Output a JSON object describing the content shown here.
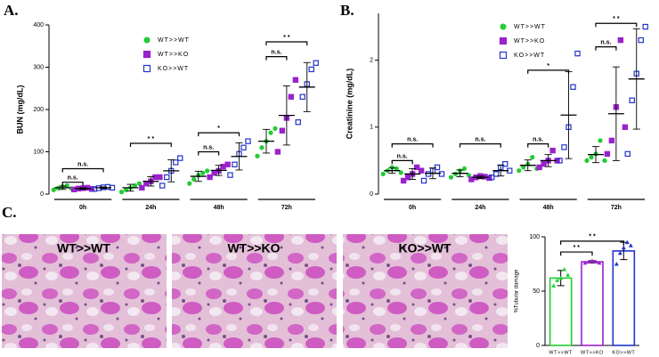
{
  "panels": [
    "A.",
    "B.",
    "C."
  ],
  "images": [
    "WT>>WT",
    "WT>>KO",
    "KO>>WT"
  ],
  "chart_data": [
    {
      "type": "dot",
      "y_label": "BUN (mg/dL)",
      "categories": [
        "0h",
        "24h",
        "48h",
        "72h"
      ],
      "ylim": [
        0,
        400
      ],
      "yticks": [
        0,
        100,
        200,
        300,
        400
      ],
      "series": [
        {
          "name": "WT>>WT",
          "color": "#22cc33",
          "marker": "circle",
          "values": [
            15,
            15,
            42,
            125
          ],
          "errors": [
            4,
            8,
            12,
            28
          ],
          "points": [
            [
              10,
              14,
              18,
              20,
              13
            ],
            [
              5,
              10,
              15,
              20,
              25
            ],
            [
              25,
              35,
              45,
              50,
              55
            ],
            [
              90,
              110,
              125,
              145,
              155
            ]
          ]
        },
        {
          "name": "WT>>KO",
          "color": "#9922cc",
          "marker": "square",
          "values": [
            13,
            30,
            56,
            186
          ],
          "errors": [
            2,
            11,
            12,
            70
          ],
          "points": [
            [
              11,
              13,
              14,
              15,
              12
            ],
            [
              15,
              25,
              30,
              40,
              40
            ],
            [
              40,
              50,
              55,
              65,
              70
            ],
            [
              100,
              150,
              180,
              230,
              270
            ]
          ]
        },
        {
          "name": "KO>>WT",
          "color": "#2233cc",
          "marker": "open-square",
          "values": [
            15,
            55,
            89,
            253
          ],
          "errors": [
            2,
            26,
            32,
            58
          ],
          "points": [
            [
              12,
              14,
              16,
              17,
              15
            ],
            [
              20,
              40,
              55,
              75,
              85
            ],
            [
              45,
              70,
              95,
              110,
              125
            ],
            [
              170,
              230,
              260,
              295,
              310
            ]
          ]
        }
      ],
      "annotations": [
        {
          "text": "n.s.",
          "category": 0,
          "from": 0,
          "to": 1,
          "y": 28
        },
        {
          "text": "n.s.",
          "category": 0,
          "from": 0,
          "to": 2,
          "y": 60
        },
        {
          "text": "* *",
          "category": 1,
          "from": 0,
          "to": 2,
          "y": 120
        },
        {
          "text": "n.s.",
          "category": 2,
          "from": 0,
          "to": 1,
          "y": 100
        },
        {
          "text": "*",
          "category": 2,
          "from": 0,
          "to": 2,
          "y": 145
        },
        {
          "text": "n.s.",
          "category": 3,
          "from": 0,
          "to": 1,
          "y": 325
        },
        {
          "text": "* *",
          "category": 3,
          "from": 0,
          "to": 2,
          "y": 360
        }
      ]
    },
    {
      "type": "dot",
      "y_label": "Creatinine (mg/dL)",
      "categories": [
        "0h",
        "24h",
        "48h",
        "72h"
      ],
      "ylim": [
        0,
        2.7
      ],
      "yticks": [
        0,
        1,
        2
      ],
      "series": [
        {
          "name": "WT>>WT",
          "color": "#22cc33",
          "marker": "circle",
          "values": [
            0.35,
            0.31,
            0.43,
            0.59
          ],
          "errors": [
            0.04,
            0.05,
            0.08,
            0.12
          ],
          "points": [
            [
              0.3,
              0.35,
              0.4,
              0.38,
              0.32
            ],
            [
              0.25,
              0.3,
              0.35,
              0.38,
              0.28
            ],
            [
              0.35,
              0.4,
              0.45,
              0.55,
              0.38
            ],
            [
              0.5,
              0.55,
              0.6,
              0.8,
              0.5
            ]
          ]
        },
        {
          "name": "WT>>KO",
          "color": "#9922cc",
          "marker": "square",
          "values": [
            0.3,
            0.25,
            0.5,
            1.2
          ],
          "errors": [
            0.08,
            0.02,
            0.09,
            0.7
          ],
          "points": [
            [
              0.2,
              0.25,
              0.3,
              0.4,
              0.35
            ],
            [
              0.22,
              0.25,
              0.27,
              0.26,
              0.24
            ],
            [
              0.4,
              0.45,
              0.5,
              0.65,
              0.5
            ],
            [
              0.6,
              0.8,
              1.3,
              2.3,
              1.0
            ]
          ]
        },
        {
          "name": "KO>>WT",
          "color": "#2233cc",
          "marker": "open-square",
          "values": [
            0.31,
            0.35,
            1.18,
            1.72
          ],
          "errors": [
            0.08,
            0.08,
            0.65,
            0.75
          ],
          "points": [
            [
              0.2,
              0.3,
              0.35,
              0.4,
              0.3
            ],
            [
              0.25,
              0.3,
              0.4,
              0.45,
              0.35
            ],
            [
              0.5,
              0.7,
              1.0,
              1.6,
              2.1
            ],
            [
              0.6,
              1.4,
              1.8,
              2.3,
              2.5
            ]
          ]
        }
      ],
      "annotations": [
        {
          "text": "n.s.",
          "category": 0,
          "from": 0,
          "to": 1,
          "y": 0.5
        },
        {
          "text": "n.s.",
          "category": 0,
          "from": 0,
          "to": 2,
          "y": 0.75
        },
        {
          "text": "n.s.",
          "category": 1,
          "from": 0,
          "to": 2,
          "y": 0.75
        },
        {
          "text": "n.s.",
          "category": 2,
          "from": 0,
          "to": 1,
          "y": 0.75
        },
        {
          "text": "*",
          "category": 2,
          "from": 0,
          "to": 2,
          "y": 1.85
        },
        {
          "text": "n.s.",
          "category": 3,
          "from": 0,
          "to": 1,
          "y": 2.2
        },
        {
          "text": "* *",
          "category": 3,
          "from": 0,
          "to": 2,
          "y": 2.55
        }
      ]
    },
    {
      "type": "bar",
      "y_label": "%Tubular damage",
      "categories": [
        "WT>>WT",
        "WT>>KO",
        "KO>>WT"
      ],
      "ylim": [
        0,
        100
      ],
      "yticks": [
        0,
        50,
        100
      ],
      "colors": [
        "#22cc33",
        "#9922cc",
        "#2233cc"
      ],
      "values": [
        62,
        77,
        87
      ],
      "errors": [
        7,
        1,
        8
      ],
      "points": [
        [
          55,
          60,
          62,
          70,
          65
        ],
        [
          76,
          77,
          78,
          77,
          76
        ],
        [
          75,
          85,
          90,
          95,
          92
        ]
      ],
      "annotations": [
        {
          "text": "* *",
          "from": 0,
          "to": 1,
          "y": 86
        },
        {
          "text": "* *",
          "from": 0,
          "to": 2,
          "y": 96
        }
      ]
    }
  ]
}
